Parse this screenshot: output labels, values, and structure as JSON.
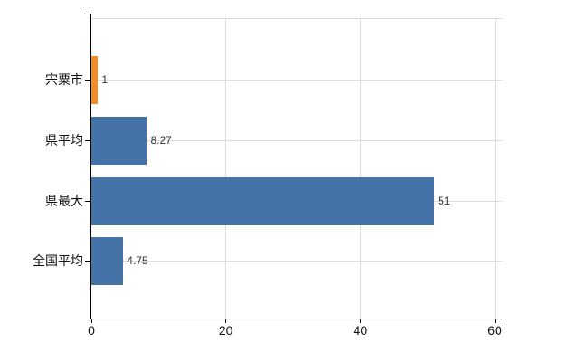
{
  "chart_data": {
    "type": "bar",
    "orientation": "horizontal",
    "title": "",
    "xlabel": "",
    "ylabel": "",
    "categories": [
      "宍粟市",
      "県平均",
      "県最大",
      "全国平均"
    ],
    "values": [
      1,
      8.27,
      51,
      4.75
    ],
    "value_labels": [
      "1",
      "8.27",
      "51",
      "4.75"
    ],
    "bar_colors": [
      "#ee8e2c",
      "#4572a7",
      "#4572a7",
      "#4572a7"
    ],
    "x_ticks": [
      0,
      20,
      40,
      60
    ],
    "x_tick_labels": [
      "0",
      "20",
      "40",
      "60"
    ],
    "xlim": [
      0,
      61
    ],
    "grid": "vertical-light",
    "legend": "none",
    "colors": {
      "axis": "#000000",
      "grid": "#dddddd",
      "category_text": "#111111",
      "value_text": "#333333",
      "background": "#ffffff",
      "bar_highlight": "#ee8e2c",
      "bar_default": "#4572a7"
    }
  }
}
